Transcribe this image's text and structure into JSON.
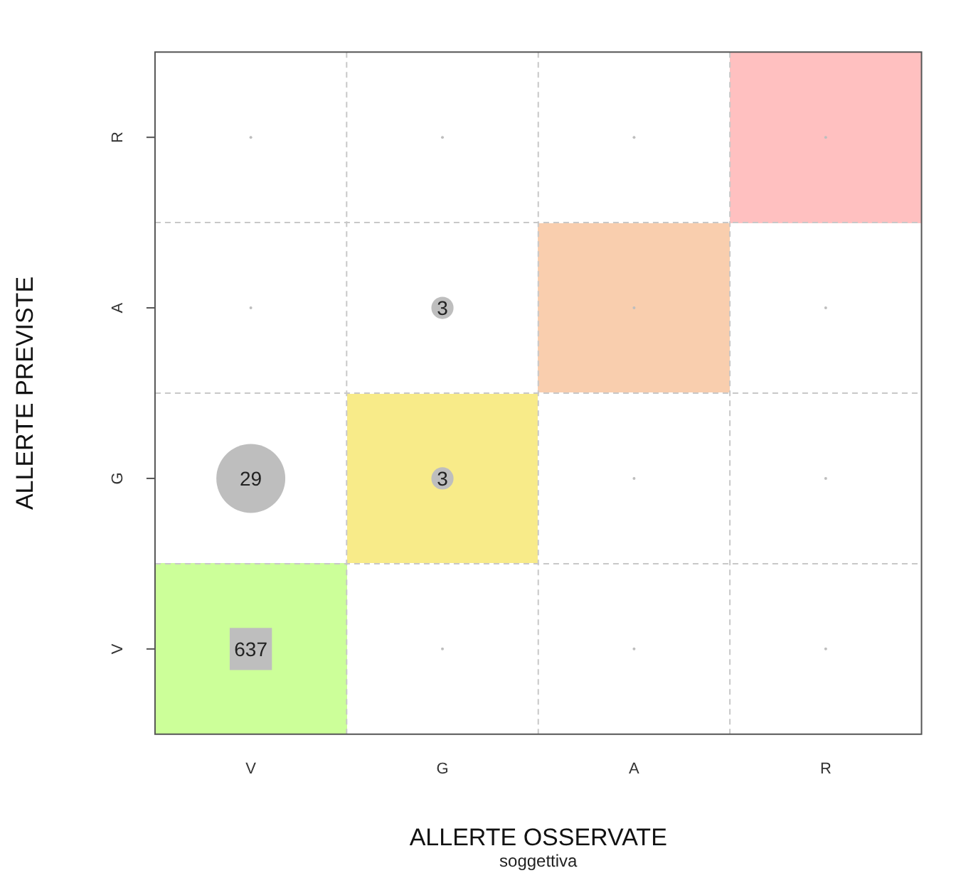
{
  "chart_data": {
    "type": "heatmap",
    "xlabel": "ALLERTE OSSERVATE",
    "subtitle": "soggettiva",
    "ylabel": "ALLERTE PREVISTE",
    "categories": [
      "V",
      "G",
      "A",
      "R"
    ],
    "y_categories": [
      "R",
      "A",
      "G",
      "V"
    ],
    "cells": [
      [
        null,
        null,
        null,
        null
      ],
      [
        null,
        3,
        null,
        null
      ],
      [
        29,
        3,
        null,
        null
      ],
      [
        637,
        null,
        null,
        null
      ]
    ],
    "cell_labels": [
      [
        null,
        null,
        null,
        null
      ],
      [
        null,
        "3",
        null,
        null
      ],
      [
        "29",
        "3",
        null,
        null
      ],
      [
        "637",
        null,
        null,
        null
      ]
    ],
    "colors": [
      [
        null,
        null,
        null,
        "#ffc0c0"
      ],
      [
        null,
        null,
        "#f9ceae",
        null
      ],
      [
        null,
        "#f8eb89",
        null,
        null
      ],
      [
        "#ccff99",
        null,
        null,
        null
      ]
    ],
    "grid": true
  }
}
